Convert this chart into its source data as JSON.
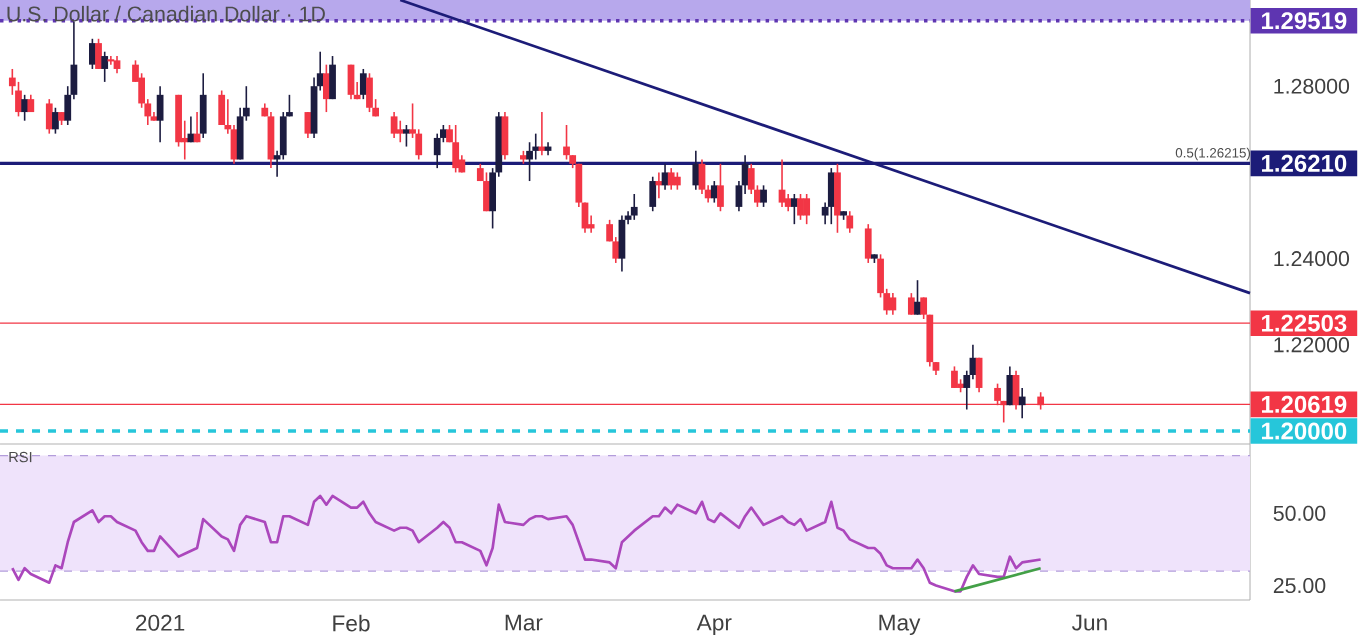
{
  "chart_data": [
    {
      "type": "candlestick",
      "title": "U.S. Dollar / Canadian Dollar · 1D",
      "x": [
        "2020-12-08",
        "2020-12-09",
        "2020-12-10",
        "2020-12-11",
        "2020-12-14",
        "2020-12-15",
        "2020-12-16",
        "2020-12-17",
        "2020-12-18",
        "2020-12-21",
        "2020-12-22",
        "2020-12-23",
        "2020-12-24",
        "2020-12-25",
        "2020-12-28",
        "2020-12-29",
        "2020-12-30",
        "2020-12-31",
        "2021-01-01",
        "2021-01-04",
        "2021-01-05",
        "2021-01-06",
        "2021-01-07",
        "2021-01-08",
        "2021-01-11",
        "2021-01-12",
        "2021-01-13",
        "2021-01-14",
        "2021-01-15",
        "2021-01-18",
        "2021-01-19",
        "2021-01-20",
        "2021-01-21",
        "2021-01-22",
        "2021-01-25",
        "2021-01-26",
        "2021-01-27",
        "2021-01-28",
        "2021-01-29",
        "2021-02-01",
        "2021-02-02",
        "2021-02-03",
        "2021-02-04",
        "2021-02-05",
        "2021-02-08",
        "2021-02-09",
        "2021-02-10",
        "2021-02-11",
        "2021-02-12",
        "2021-02-15",
        "2021-02-16",
        "2021-02-17",
        "2021-02-18",
        "2021-02-19",
        "2021-02-22",
        "2021-02-23",
        "2021-02-24",
        "2021-02-25",
        "2021-02-26",
        "2021-03-01",
        "2021-03-02",
        "2021-03-03",
        "2021-03-04",
        "2021-03-05",
        "2021-03-08",
        "2021-03-09",
        "2021-03-10",
        "2021-03-11",
        "2021-03-12",
        "2021-03-15",
        "2021-03-16",
        "2021-03-17",
        "2021-03-18",
        "2021-03-19",
        "2021-03-22",
        "2021-03-23",
        "2021-03-24",
        "2021-03-25",
        "2021-03-26",
        "2021-03-29",
        "2021-03-30",
        "2021-03-31",
        "2021-04-01",
        "2021-04-02",
        "2021-04-05",
        "2021-04-06",
        "2021-04-07",
        "2021-04-08",
        "2021-04-09",
        "2021-04-12",
        "2021-04-13",
        "2021-04-14",
        "2021-04-15",
        "2021-04-16",
        "2021-04-19",
        "2021-04-20",
        "2021-04-21",
        "2021-04-22",
        "2021-04-23",
        "2021-04-26",
        "2021-04-27",
        "2021-04-28",
        "2021-04-29",
        "2021-04-30",
        "2021-05-03",
        "2021-05-04",
        "2021-05-05",
        "2021-05-06",
        "2021-05-07",
        "2021-05-10",
        "2021-05-11",
        "2021-05-12",
        "2021-05-13",
        "2021-05-14",
        "2021-05-17",
        "2021-05-18",
        "2021-05-19",
        "2021-05-20",
        "2021-05-21",
        "2021-05-24"
      ],
      "ohlc": [
        [
          1.282,
          1.284,
          1.278,
          1.28
        ],
        [
          1.279,
          1.281,
          1.273,
          1.274
        ],
        [
          1.274,
          1.278,
          1.272,
          1.277
        ],
        [
          1.277,
          1.278,
          1.274,
          1.274
        ],
        [
          1.276,
          1.277,
          1.269,
          1.27
        ],
        [
          1.27,
          1.275,
          1.269,
          1.274
        ],
        [
          1.274,
          1.274,
          1.271,
          1.272
        ],
        [
          1.272,
          1.28,
          1.271,
          1.278
        ],
        [
          1.278,
          1.295,
          1.277,
          1.285
        ],
        [
          1.285,
          1.291,
          1.284,
          1.29
        ],
        [
          1.29,
          1.291,
          1.284,
          1.284
        ],
        [
          1.284,
          1.288,
          1.281,
          1.287
        ],
        [
          1.286,
          1.287,
          1.285,
          1.286
        ],
        [
          1.286,
          1.287,
          1.283,
          1.284
        ],
        [
          1.285,
          1.286,
          1.281,
          1.281
        ],
        [
          1.282,
          1.283,
          1.275,
          1.276
        ],
        [
          1.276,
          1.277,
          1.271,
          1.273
        ],
        [
          1.273,
          1.274,
          1.272,
          1.272
        ],
        [
          1.272,
          1.28,
          1.267,
          1.278
        ],
        [
          1.278,
          1.278,
          1.266,
          1.267
        ],
        [
          1.268,
          1.272,
          1.263,
          1.267
        ],
        [
          1.267,
          1.273,
          1.267,
          1.269
        ],
        [
          1.269,
          1.274,
          1.267,
          1.267
        ],
        [
          1.269,
          1.283,
          1.268,
          1.278
        ],
        [
          1.278,
          1.279,
          1.271,
          1.271
        ],
        [
          1.271,
          1.277,
          1.269,
          1.27
        ],
        [
          1.27,
          1.271,
          1.262,
          1.263
        ],
        [
          1.263,
          1.275,
          1.263,
          1.273
        ],
        [
          1.273,
          1.28,
          1.272,
          1.275
        ],
        [
          1.275,
          1.276,
          1.273,
          1.273
        ],
        [
          1.273,
          1.274,
          1.261,
          1.263
        ],
        [
          1.263,
          1.265,
          1.259,
          1.264
        ],
        [
          1.264,
          1.274,
          1.263,
          1.273
        ],
        [
          1.273,
          1.278,
          1.273,
          1.274
        ],
        [
          1.274,
          1.274,
          1.268,
          1.269
        ],
        [
          1.269,
          1.282,
          1.268,
          1.28
        ],
        [
          1.28,
          1.288,
          1.279,
          1.283
        ],
        [
          1.283,
          1.285,
          1.274,
          1.277
        ],
        [
          1.277,
          1.287,
          1.277,
          1.285
        ],
        [
          1.285,
          1.285,
          1.277,
          1.278
        ],
        [
          1.278,
          1.281,
          1.277,
          1.277
        ],
        [
          1.278,
          1.284,
          1.277,
          1.283
        ],
        [
          1.282,
          1.283,
          1.274,
          1.275
        ],
        [
          1.275,
          1.277,
          1.273,
          1.273
        ],
        [
          1.273,
          1.274,
          1.268,
          1.269
        ],
        [
          1.27,
          1.272,
          1.267,
          1.269
        ],
        [
          1.269,
          1.271,
          1.266,
          1.27
        ],
        [
          1.27,
          1.276,
          1.268,
          1.269
        ],
        [
          1.269,
          1.27,
          1.263,
          1.264
        ],
        [
          1.264,
          1.269,
          1.261,
          1.268
        ],
        [
          1.268,
          1.271,
          1.267,
          1.27
        ],
        [
          1.27,
          1.271,
          1.267,
          1.267
        ],
        [
          1.267,
          1.271,
          1.26,
          1.261
        ],
        [
          1.263,
          1.264,
          1.26,
          1.26
        ],
        [
          1.261,
          1.262,
          1.258,
          1.258
        ],
        [
          1.258,
          1.26,
          1.251,
          1.251
        ],
        [
          1.251,
          1.261,
          1.247,
          1.26
        ],
        [
          1.26,
          1.274,
          1.259,
          1.273
        ],
        [
          1.273,
          1.274,
          1.263,
          1.264
        ],
        [
          1.264,
          1.265,
          1.262,
          1.263
        ],
        [
          1.263,
          1.267,
          1.258,
          1.265
        ],
        [
          1.265,
          1.269,
          1.263,
          1.266
        ],
        [
          1.266,
          1.274,
          1.264,
          1.265
        ],
        [
          1.265,
          1.267,
          1.264,
          1.266
        ],
        [
          1.266,
          1.271,
          1.263,
          1.264
        ],
        [
          1.264,
          1.264,
          1.261,
          1.262
        ],
        [
          1.262,
          1.262,
          1.252,
          1.253
        ],
        [
          1.253,
          1.253,
          1.246,
          1.247
        ],
        [
          1.248,
          1.25,
          1.246,
          1.247
        ],
        [
          1.248,
          1.249,
          1.244,
          1.244
        ],
        [
          1.244,
          1.245,
          1.239,
          1.24
        ],
        [
          1.24,
          1.25,
          1.237,
          1.249
        ],
        [
          1.249,
          1.251,
          1.248,
          1.25
        ],
        [
          1.25,
          1.255,
          1.249,
          1.252
        ],
        [
          1.252,
          1.259,
          1.251,
          1.258
        ],
        [
          1.258,
          1.26,
          1.254,
          1.257
        ],
        [
          1.257,
          1.262,
          1.256,
          1.26
        ],
        [
          1.26,
          1.261,
          1.256,
          1.257
        ],
        [
          1.259,
          1.26,
          1.256,
          1.257
        ],
        [
          1.257,
          1.265,
          1.256,
          1.262
        ],
        [
          1.262,
          1.263,
          1.255,
          1.256
        ],
        [
          1.256,
          1.257,
          1.253,
          1.254
        ],
        [
          1.254,
          1.258,
          1.253,
          1.257
        ],
        [
          1.257,
          1.262,
          1.251,
          1.252
        ],
        [
          1.252,
          1.258,
          1.251,
          1.257
        ],
        [
          1.257,
          1.264,
          1.255,
          1.262
        ],
        [
          1.261,
          1.262,
          1.255,
          1.256
        ],
        [
          1.256,
          1.257,
          1.252,
          1.253
        ],
        [
          1.253,
          1.257,
          1.252,
          1.256
        ],
        [
          1.256,
          1.263,
          1.252,
          1.253
        ],
        [
          1.254,
          1.255,
          1.251,
          1.252
        ],
        [
          1.252,
          1.255,
          1.248,
          1.254
        ],
        [
          1.254,
          1.255,
          1.249,
          1.25
        ],
        [
          1.254,
          1.255,
          1.248,
          1.25
        ],
        [
          1.25,
          1.253,
          1.248,
          1.252
        ],
        [
          1.252,
          1.261,
          1.248,
          1.26
        ],
        [
          1.26,
          1.262,
          1.246,
          1.25
        ],
        [
          1.25,
          1.251,
          1.249,
          1.251
        ],
        [
          1.25,
          1.251,
          1.246,
          1.247
        ],
        [
          1.247,
          1.248,
          1.239,
          1.24
        ],
        [
          1.24,
          1.241,
          1.239,
          1.241
        ],
        [
          1.24,
          1.241,
          1.231,
          1.232
        ],
        [
          1.232,
          1.233,
          1.227,
          1.228
        ],
        [
          1.231,
          1.232,
          1.227,
          1.228
        ],
        [
          1.231,
          1.232,
          1.227,
          1.227
        ],
        [
          1.227,
          1.235,
          1.227,
          1.23
        ],
        [
          1.231,
          1.231,
          1.226,
          1.227
        ],
        [
          1.227,
          1.227,
          1.215,
          1.216
        ],
        [
          1.216,
          1.216,
          1.213,
          1.214
        ],
        [
          1.214,
          1.215,
          1.21,
          1.21
        ],
        [
          1.211,
          1.212,
          1.209,
          1.21
        ],
        [
          1.21,
          1.214,
          1.205,
          1.213
        ],
        [
          1.213,
          1.22,
          1.212,
          1.217
        ],
        [
          1.217,
          1.217,
          1.209,
          1.21
        ],
        [
          1.21,
          1.211,
          1.206,
          1.207
        ],
        [
          1.207,
          1.207,
          1.202,
          1.206
        ],
        [
          1.206,
          1.215,
          1.206,
          1.213
        ],
        [
          1.213,
          1.214,
          1.205,
          1.206
        ],
        [
          1.206,
          1.21,
          1.203,
          1.208
        ],
        [
          1.208,
          1.209,
          1.205,
          1.206
        ]
      ],
      "series": [
        {
          "type": "line",
          "x": [
            "2021-02-09",
            "2021-06-27"
          ],
          "values": [
            1.3,
            1.232
          ],
          "color": "#1c1c78"
        }
      ],
      "xlim": [
        "2020-12-06",
        "2021-06-27"
      ],
      "ylim": [
        1.197,
        1.3
      ],
      "yticks": [
        {
          "value": 1.22,
          "label": "1.22000"
        },
        {
          "value": 1.24,
          "label": "1.24000"
        },
        {
          "value": 1.28,
          "label": "1.28000"
        }
      ],
      "tick_labels": "y",
      "bands": [
        {
          "axis": "y",
          "from": 1.29519,
          "to": 1.3,
          "color": "#b7a8ec"
        }
      ],
      "ref_lines": [
        {
          "axis": "y",
          "value": 1.29519,
          "label": "1.29519",
          "color": "#5e35b1",
          "line_style": "dotted"
        },
        {
          "axis": "y",
          "value": 1.2621,
          "label": "1.26210",
          "color": "#1c1c78"
        },
        {
          "axis": "y",
          "value": 1.22503,
          "label": "1.22503",
          "color": "#f23645"
        },
        {
          "axis": "y",
          "value": 1.20619,
          "label": "1.20619",
          "color": "#f23645"
        },
        {
          "axis": "y",
          "value": 1.2,
          "label": "1.20000",
          "color": "#26c6da",
          "line_style": "dashed"
        }
      ],
      "annotations": [
        {
          "text": "0.5(1.26215)",
          "x": "2021-06-21",
          "y": 1.2621
        }
      ]
    },
    {
      "type": "line",
      "x": [
        "2020-12-08",
        "2020-12-09",
        "2020-12-10",
        "2020-12-11",
        "2020-12-14",
        "2020-12-15",
        "2020-12-16",
        "2020-12-17",
        "2020-12-18",
        "2020-12-21",
        "2020-12-22",
        "2020-12-23",
        "2020-12-24",
        "2020-12-25",
        "2020-12-28",
        "2020-12-29",
        "2020-12-30",
        "2020-12-31",
        "2021-01-01",
        "2021-01-04",
        "2021-01-05",
        "2021-01-06",
        "2021-01-07",
        "2021-01-08",
        "2021-01-11",
        "2021-01-12",
        "2021-01-13",
        "2021-01-14",
        "2021-01-15",
        "2021-01-18",
        "2021-01-19",
        "2021-01-20",
        "2021-01-21",
        "2021-01-22",
        "2021-01-25",
        "2021-01-26",
        "2021-01-27",
        "2021-01-28",
        "2021-01-29",
        "2021-02-01",
        "2021-02-02",
        "2021-02-03",
        "2021-02-04",
        "2021-02-05",
        "2021-02-08",
        "2021-02-09",
        "2021-02-10",
        "2021-02-11",
        "2021-02-12",
        "2021-02-15",
        "2021-02-16",
        "2021-02-17",
        "2021-02-18",
        "2021-02-19",
        "2021-02-22",
        "2021-02-23",
        "2021-02-24",
        "2021-02-25",
        "2021-02-26",
        "2021-03-01",
        "2021-03-02",
        "2021-03-03",
        "2021-03-04",
        "2021-03-05",
        "2021-03-08",
        "2021-03-09",
        "2021-03-10",
        "2021-03-11",
        "2021-03-12",
        "2021-03-15",
        "2021-03-16",
        "2021-03-17",
        "2021-03-18",
        "2021-03-19",
        "2021-03-22",
        "2021-03-23",
        "2021-03-24",
        "2021-03-25",
        "2021-03-26",
        "2021-03-29",
        "2021-03-30",
        "2021-03-31",
        "2021-04-01",
        "2021-04-02",
        "2021-04-05",
        "2021-04-06",
        "2021-04-07",
        "2021-04-08",
        "2021-04-09",
        "2021-04-12",
        "2021-04-13",
        "2021-04-14",
        "2021-04-15",
        "2021-04-16",
        "2021-04-19",
        "2021-04-20",
        "2021-04-21",
        "2021-04-22",
        "2021-04-23",
        "2021-04-26",
        "2021-04-27",
        "2021-04-28",
        "2021-04-29",
        "2021-04-30",
        "2021-05-03",
        "2021-05-04",
        "2021-05-05",
        "2021-05-06",
        "2021-05-07",
        "2021-05-10",
        "2021-05-11",
        "2021-05-12",
        "2021-05-13",
        "2021-05-14",
        "2021-05-17",
        "2021-05-18",
        "2021-05-19",
        "2021-05-20",
        "2021-05-21",
        "2021-05-24"
      ],
      "series": [
        {
          "color": "#ab47bc",
          "values": [
            31,
            27,
            31,
            29,
            26,
            32,
            31,
            40,
            47,
            51,
            47,
            49,
            49,
            47,
            44,
            40,
            37,
            37,
            42,
            35,
            36,
            37,
            38,
            48,
            42,
            41,
            37,
            46,
            49,
            47,
            40,
            40,
            49,
            49,
            46,
            54,
            56,
            53,
            56,
            52,
            52,
            54,
            50,
            47,
            44,
            45,
            45,
            44,
            40,
            45,
            47,
            45,
            40,
            40,
            37,
            32,
            38,
            53,
            47,
            46,
            48,
            49,
            49,
            48,
            49,
            46,
            40,
            34,
            34,
            33,
            31,
            40,
            42,
            44,
            49,
            49,
            52,
            50,
            53,
            50,
            54,
            48,
            47,
            50,
            45,
            49,
            52,
            49,
            46,
            49,
            47,
            46,
            48,
            44,
            47,
            54,
            45,
            44,
            41,
            38,
            38,
            36,
            32,
            31,
            31,
            34,
            31,
            26,
            25,
            23,
            23,
            28,
            32,
            29,
            28,
            28,
            35,
            31,
            33,
            34
          ]
        },
        {
          "x": [
            "2021-05-10",
            "2021-05-24"
          ],
          "values": [
            23,
            31
          ],
          "color": "#43a047"
        }
      ],
      "xlim": [
        "2020-12-06",
        "2021-06-27"
      ],
      "ylim": [
        20,
        74
      ],
      "yticks": [
        {
          "value": 25,
          "label": "25.00"
        },
        {
          "value": 50,
          "label": "50.00"
        }
      ],
      "xticks": [
        {
          "value": "2021-01-01",
          "label": "2021"
        },
        {
          "value": "2021-02-01",
          "label": "Feb"
        },
        {
          "value": "2021-03-01",
          "label": "Mar"
        },
        {
          "value": "2021-04-01",
          "label": "Apr"
        },
        {
          "value": "2021-05-01",
          "label": "May"
        },
        {
          "value": "2021-06-01",
          "label": "Jun"
        }
      ],
      "bands": [
        {
          "axis": "y",
          "from": 30,
          "to": 70,
          "color": "#efe3fb"
        }
      ],
      "ref_lines": [
        {
          "axis": "y",
          "value": 70,
          "color": "#b39ddb",
          "line_style": "dashed"
        },
        {
          "axis": "y",
          "value": 30,
          "color": "#b39ddb",
          "line_style": "dashed"
        }
      ],
      "annotations": [
        "RSI"
      ]
    }
  ]
}
